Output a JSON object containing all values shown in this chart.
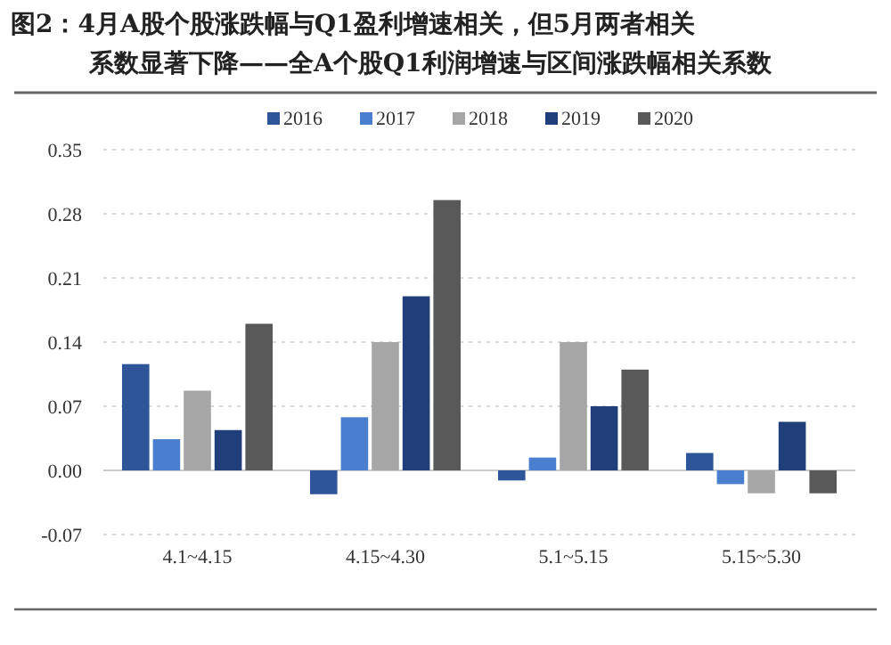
{
  "chart_data": {
    "type": "bar",
    "title": "图2：4月A股个股涨跌幅与Q1盈利增速相关，但5月两者相关系数显著下降——全A个股Q1利润增速与区间涨跌幅相关系数",
    "categories": [
      "4.1~4.15",
      "4.15~4.30",
      "5.1~5.15",
      "5.15~5.30"
    ],
    "series": [
      {
        "name": "2016",
        "color": "#2e5597",
        "values": [
          0.116,
          -0.026,
          -0.011,
          0.019
        ]
      },
      {
        "name": "2017",
        "color": "#4a7fd0",
        "values": [
          0.034,
          0.058,
          0.014,
          -0.015
        ]
      },
      {
        "name": "2018",
        "color": "#a6a6a6",
        "values": [
          0.087,
          0.14,
          0.14,
          -0.025
        ]
      },
      {
        "name": "2019",
        "color": "#203f7a",
        "values": [
          0.044,
          0.19,
          0.07,
          0.053
        ]
      },
      {
        "name": "2020",
        "color": "#595959",
        "values": [
          0.16,
          0.295,
          0.11,
          -0.025
        ]
      }
    ],
    "ylim": [
      -0.07,
      0.35
    ],
    "yticks": [
      -0.07,
      {
        "value": 0,
        "label": "0.00"
      },
      0.07,
      0.14,
      0.21,
      0.28,
      0.35
    ],
    "grid": "y",
    "legend": "top"
  }
}
